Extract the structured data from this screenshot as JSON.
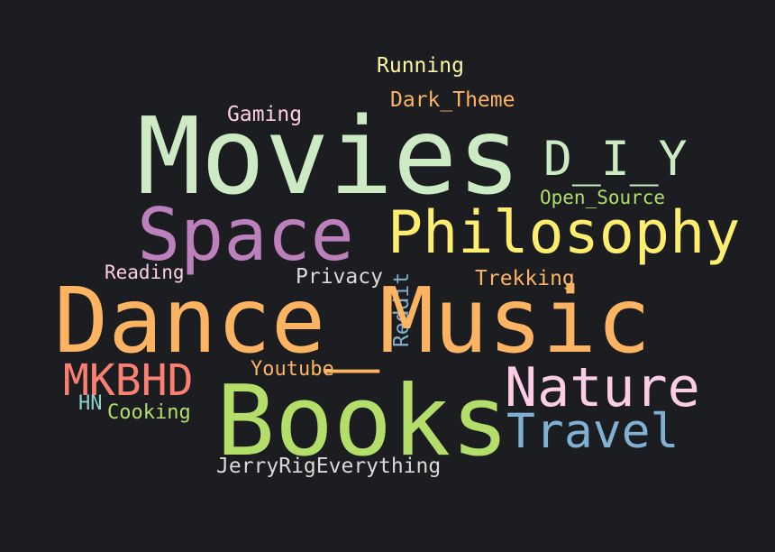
{
  "words": [
    {
      "text": "Running",
      "color": "#fdf6a6"
    },
    {
      "text": "Dark_Theme",
      "color": "#fdb462"
    },
    {
      "text": "Gaming",
      "color": "#fccde5"
    },
    {
      "text": "Movies",
      "color": "#ccebc5"
    },
    {
      "text": "D_I_Y",
      "color": "#ccebc5"
    },
    {
      "text": "Open_Source",
      "color": "#b3de69"
    },
    {
      "text": "Space",
      "color": "#bc80bd"
    },
    {
      "text": "Philosophy",
      "color": "#ffed6f"
    },
    {
      "text": "Reading",
      "color": "#fccde5"
    },
    {
      "text": "Privacy",
      "color": "#d9d9d9"
    },
    {
      "text": "Reddit",
      "color": "#80b1d3"
    },
    {
      "text": "Trekking",
      "color": "#fdb462"
    },
    {
      "text": "Dance_Music",
      "color": "#fdb462"
    },
    {
      "text": "MKBHD",
      "color": "#fb8072"
    },
    {
      "text": "Youtube",
      "color": "#fdb462"
    },
    {
      "text": "Nature",
      "color": "#fccde5"
    },
    {
      "text": "HN",
      "color": "#8dd3c7"
    },
    {
      "text": "Cooking",
      "color": "#b3de69"
    },
    {
      "text": "Books",
      "color": "#b3de69"
    },
    {
      "text": "Travel",
      "color": "#80b1d3"
    },
    {
      "text": "JerryRigEverything",
      "color": "#d9d9d9"
    }
  ]
}
